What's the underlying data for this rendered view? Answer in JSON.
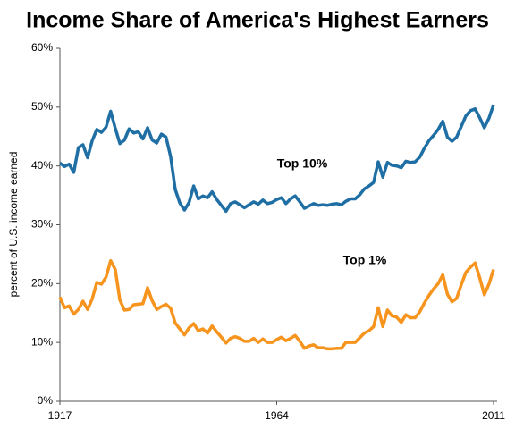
{
  "chart_data": {
    "type": "line",
    "title": "Income Share of America's Highest Earners",
    "ylabel": "percent of U.S. income earned",
    "x": [
      1917,
      1918,
      1919,
      1920,
      1921,
      1922,
      1923,
      1924,
      1925,
      1926,
      1927,
      1928,
      1929,
      1930,
      1931,
      1932,
      1933,
      1934,
      1935,
      1936,
      1937,
      1938,
      1939,
      1940,
      1941,
      1942,
      1943,
      1944,
      1945,
      1946,
      1947,
      1948,
      1949,
      1950,
      1951,
      1952,
      1953,
      1954,
      1955,
      1956,
      1957,
      1958,
      1959,
      1960,
      1961,
      1962,
      1963,
      1964,
      1965,
      1966,
      1967,
      1968,
      1969,
      1970,
      1971,
      1972,
      1973,
      1974,
      1975,
      1976,
      1977,
      1978,
      1979,
      1980,
      1981,
      1982,
      1983,
      1984,
      1985,
      1986,
      1987,
      1988,
      1989,
      1990,
      1991,
      1992,
      1993,
      1994,
      1995,
      1996,
      1997,
      1998,
      1999,
      2000,
      2001,
      2002,
      2003,
      2004,
      2005,
      2006,
      2007,
      2008,
      2009,
      2010,
      2011
    ],
    "xlim": [
      1917,
      2011
    ],
    "xticks": [
      1917,
      1964,
      2011
    ],
    "ylim": [
      0,
      60
    ],
    "yticks": [
      {
        "value": 0,
        "label": "0%"
      },
      {
        "value": 10,
        "label": "10%"
      },
      {
        "value": 20,
        "label": "20%"
      },
      {
        "value": 30,
        "label": "30%"
      },
      {
        "value": 40,
        "label": "40%"
      },
      {
        "value": 50,
        "label": "50%"
      },
      {
        "value": 60,
        "label": "60%"
      }
    ],
    "grid": false,
    "series": [
      {
        "name": "Top 10%",
        "color": "#1f6fa5",
        "values": [
          40.5,
          39.9,
          40.3,
          38.9,
          43.1,
          43.6,
          41.4,
          44.3,
          46.2,
          45.7,
          46.6,
          49.3,
          46.4,
          43.8,
          44.4,
          46.3,
          45.6,
          45.8,
          44.6,
          46.5,
          44.4,
          43.9,
          45.4,
          44.9,
          41.6,
          36.0,
          33.7,
          32.5,
          33.8,
          36.6,
          34.4,
          34.9,
          34.6,
          35.6,
          34.3,
          33.3,
          32.3,
          33.6,
          33.9,
          33.4,
          32.9,
          33.4,
          33.9,
          33.5,
          34.2,
          33.6,
          33.8,
          34.3,
          34.6,
          33.6,
          34.4,
          34.9,
          33.9,
          32.8,
          33.2,
          33.6,
          33.3,
          33.4,
          33.3,
          33.5,
          33.6,
          33.4,
          34.0,
          34.4,
          34.4,
          35.1,
          36.1,
          36.6,
          37.2,
          40.7,
          38.1,
          40.6,
          40.1,
          40.0,
          39.7,
          40.8,
          40.6,
          40.7,
          41.5,
          43.0,
          44.3,
          45.2,
          46.2,
          47.6,
          44.9,
          44.2,
          44.9,
          46.7,
          48.5,
          49.4,
          49.7,
          48.2,
          46.5,
          48.1,
          50.4
        ]
      },
      {
        "name": "Top 1%",
        "color": "#f7941d",
        "values": [
          17.7,
          15.9,
          16.2,
          14.8,
          15.6,
          17.0,
          15.6,
          17.4,
          20.2,
          19.9,
          21.1,
          23.9,
          22.4,
          17.2,
          15.5,
          15.6,
          16.4,
          16.5,
          16.6,
          19.3,
          17.1,
          15.6,
          16.1,
          16.5,
          15.8,
          13.3,
          12.3,
          11.3,
          12.5,
          13.2,
          12.0,
          12.3,
          11.6,
          12.8,
          11.8,
          10.9,
          9.9,
          10.7,
          11.0,
          10.7,
          10.2,
          10.2,
          10.7,
          10.0,
          10.6,
          10.0,
          10.0,
          10.5,
          10.9,
          10.3,
          10.7,
          11.2,
          10.2,
          9.0,
          9.4,
          9.6,
          9.1,
          9.1,
          8.9,
          8.9,
          9.0,
          9.0,
          10.0,
          10.0,
          10.0,
          10.8,
          11.6,
          12.0,
          12.7,
          15.9,
          12.7,
          15.5,
          14.5,
          14.3,
          13.4,
          14.7,
          14.2,
          14.2,
          15.2,
          16.7,
          18.0,
          19.1,
          20.0,
          21.5,
          18.2,
          16.9,
          17.5,
          19.8,
          21.9,
          22.8,
          23.5,
          21.0,
          18.1,
          19.9,
          22.4
        ]
      }
    ]
  }
}
